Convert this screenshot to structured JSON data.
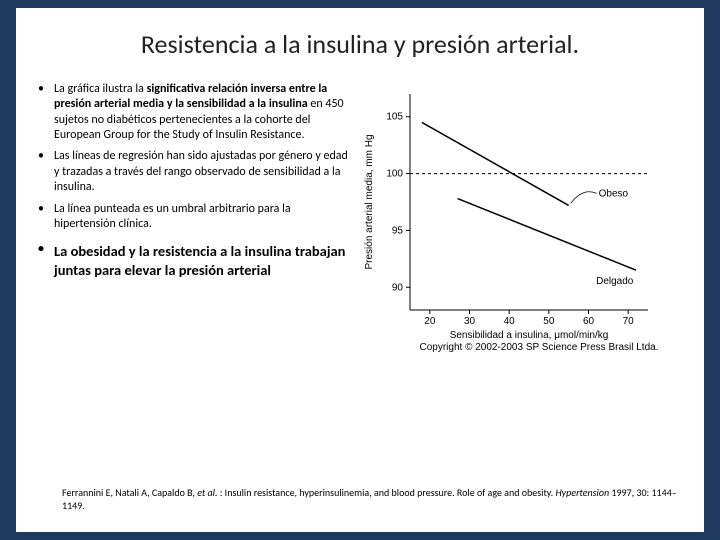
{
  "title": "Resistencia a la insulina y presión arterial.",
  "bullets": {
    "b1_pre": "La gráfica ilustra la ",
    "b1_bold": "significativa relación inversa entre la presión arterial media y la sensibilidad a la insulina",
    "b1_post": " en 450 sujetos no diabéticos pertenecientes a la cohorte del European Group for the Study of Insulin Resistance.",
    "b2": " Las líneas de regresión han sido ajustadas por género y edad y trazadas a través del rango observado de sensibilidad a la insulina.",
    "b3": "La línea punteada es un umbral arbitrario para la hipertensión clínica.",
    "b4": " La obesidad y la resistencia a la insulina trabajan juntas  para elevar la presión arterial"
  },
  "chart": {
    "type": "line",
    "y_label": "Presión arterial media, mm Hg",
    "x_label": "Sensibilidad a insulina, μmol/min/kg",
    "y_ticks": [
      90,
      95,
      100,
      105
    ],
    "x_ticks": [
      20,
      30,
      40,
      50,
      60,
      70
    ],
    "y_lim": [
      88,
      107
    ],
    "x_lim": [
      15,
      75
    ],
    "threshold_y": 100,
    "series": [
      {
        "label": "Obeso",
        "label_indicator": true,
        "points": [
          [
            18,
            104.5
          ],
          [
            55,
            97.2
          ]
        ],
        "color": "#000000",
        "width": 1.5
      },
      {
        "label": "Delgado",
        "label_indicator": false,
        "points": [
          [
            27,
            97.8
          ],
          [
            72,
            91.5
          ]
        ],
        "color": "#000000",
        "width": 1.5
      }
    ],
    "threshold_color": "#000000",
    "background_color": "#ffffff",
    "axis_color": "#000000",
    "copyright": "Copyright © 2002-2003 SP Science Press Brasil Ltda."
  },
  "citation": {
    "authors": "Ferrannini E, Natali A, Capaldo B, ",
    "etal": "et al. ",
    "title_text": ": Insulin resistance, hyperinsulinemia, and blood pressure. Role of age and obesity. ",
    "journal": "Hypertension ",
    "ref": "1997, 30: 1144–1149."
  }
}
